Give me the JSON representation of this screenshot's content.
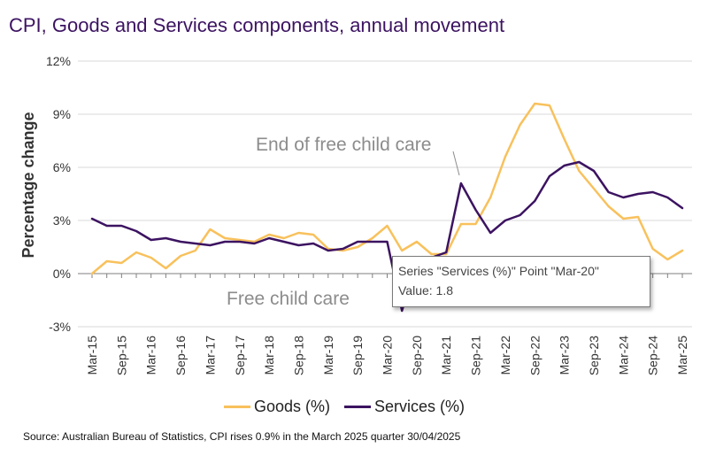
{
  "chart_data": {
    "type": "line",
    "title": "CPI, Goods and Services components, annual movement",
    "ylabel": "Percentage change",
    "xlabel": "",
    "ylim": [
      -3,
      12
    ],
    "yticks": [
      "12%",
      "9%",
      "6%",
      "3%",
      "0%",
      "-3%"
    ],
    "ytick_values": [
      12,
      9,
      6,
      3,
      0,
      -3
    ],
    "grid": "horizontal",
    "legend_position": "bottom",
    "x": [
      "Mar-15",
      "Jun-15",
      "Sep-15",
      "Dec-15",
      "Mar-16",
      "Jun-16",
      "Sep-16",
      "Dec-16",
      "Mar-17",
      "Jun-17",
      "Sep-17",
      "Dec-17",
      "Mar-18",
      "Jun-18",
      "Sep-18",
      "Dec-18",
      "Mar-19",
      "Jun-19",
      "Sep-19",
      "Dec-19",
      "Mar-20",
      "Jun-20",
      "Sep-20",
      "Dec-20",
      "Mar-21",
      "Jun-21",
      "Sep-21",
      "Dec-21",
      "Mar-22",
      "Jun-22",
      "Sep-22",
      "Dec-22",
      "Mar-23",
      "Jun-23",
      "Sep-23",
      "Dec-23",
      "Mar-24",
      "Jun-24",
      "Sep-24",
      "Dec-24",
      "Mar-25"
    ],
    "xtick_labels": [
      "Mar-15",
      "Sep-15",
      "Mar-16",
      "Sep-16",
      "Mar-17",
      "Sep-17",
      "Mar-18",
      "Sep-18",
      "Mar-19",
      "Sep-19",
      "Mar-20",
      "Sep-20",
      "Mar-21",
      "Sep-21",
      "Mar-22",
      "Sep-22",
      "Mar-23",
      "Sep-23",
      "Mar-24",
      "Sep-24",
      "Mar-25"
    ],
    "series": [
      {
        "name": "Goods (%)",
        "color": "#f8c15c",
        "values": [
          0.0,
          0.7,
          0.6,
          1.2,
          0.9,
          0.3,
          1.0,
          1.3,
          2.5,
          2.0,
          1.9,
          1.8,
          2.2,
          2.0,
          2.3,
          2.2,
          1.4,
          1.3,
          1.5,
          2.0,
          2.7,
          1.3,
          1.8,
          1.1,
          1.1,
          2.8,
          2.8,
          4.3,
          6.6,
          8.4,
          9.6,
          9.5,
          7.6,
          5.8,
          4.8,
          3.8,
          3.1,
          3.2,
          1.4,
          0.8,
          1.3
        ]
      },
      {
        "name": "Services (%)",
        "color": "#3c1361",
        "values": [
          3.1,
          2.7,
          2.7,
          2.4,
          1.9,
          2.0,
          1.8,
          1.7,
          1.6,
          1.8,
          1.8,
          1.7,
          2.0,
          1.8,
          1.6,
          1.7,
          1.3,
          1.4,
          1.8,
          1.8,
          1.8,
          -2.1,
          0.7,
          0.9,
          1.2,
          5.1,
          3.6,
          2.3,
          3.0,
          3.3,
          4.1,
          5.5,
          6.1,
          6.3,
          5.8,
          4.6,
          4.3,
          4.5,
          4.6,
          4.3,
          3.7
        ]
      }
    ],
    "annotations": [
      "End of free child care",
      "Free child care"
    ]
  },
  "tooltip": {
    "line1": "Series \"Services (%)\" Point \"Mar-20\"",
    "line2": "Value: 1.8"
  },
  "source": "Source: Australian Bureau of Statistics, CPI rises 0.9% in the March 2025 quarter 30/04/2025"
}
